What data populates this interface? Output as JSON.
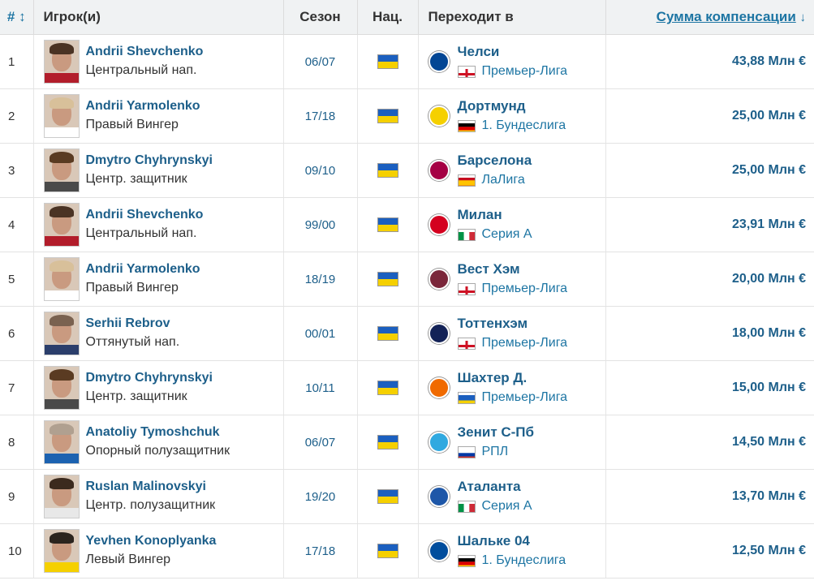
{
  "header": {
    "num": "#",
    "players": "Игрок(и)",
    "season": "Сезон",
    "nat": "Нац.",
    "moves_to": "Переходит в",
    "fee": "Сумма компенсации"
  },
  "rows": [
    {
      "rank": "1",
      "name": "Andrii Shevchenko",
      "position": "Центральный нап.",
      "season": "06/07",
      "club": "Челси",
      "league": "Премьер-Лига",
      "crest_color": "#034694",
      "league_flag": "england",
      "photo": {
        "hair": "#4a3324",
        "shirt": "#b21d2b"
      }
    },
    {
      "rank": "2",
      "name": "Andrii Yarmolenko",
      "position": "Правый Вингер",
      "season": "17/18",
      "club": "Дортмунд",
      "league": "1. Бундеслига",
      "crest_color": "#f5d000",
      "league_flag": "germany",
      "photo": {
        "hair": "#d8c09a",
        "shirt": "#ffffff"
      }
    },
    {
      "rank": "3",
      "name": "Dmytro Chyhrynskyi",
      "position": "Центр. защитник",
      "season": "09/10",
      "club": "Барселона",
      "league": "ЛаЛига",
      "crest_color": "#a50044",
      "league_flag": "spain",
      "photo": {
        "hair": "#5a3b22",
        "shirt": "#4a4a4a"
      }
    },
    {
      "rank": "4",
      "name": "Andrii Shevchenko",
      "position": "Центральный нап.",
      "season": "99/00",
      "club": "Милан",
      "league": "Серия А",
      "crest_color": "#d4001f",
      "league_flag": "italy",
      "photo": {
        "hair": "#4a3324",
        "shirt": "#b21d2b"
      }
    },
    {
      "rank": "5",
      "name": "Andrii Yarmolenko",
      "position": "Правый Вингер",
      "season": "18/19",
      "club": "Вест Хэм",
      "league": "Премьер-Лига",
      "crest_color": "#7a263a",
      "league_flag": "england",
      "photo": {
        "hair": "#d8c09a",
        "shirt": "#ffffff"
      }
    },
    {
      "rank": "6",
      "name": "Serhii Rebrov",
      "position": "Оттянутый нап.",
      "season": "00/01",
      "club": "Тоттенхэм",
      "league": "Премьер-Лига",
      "crest_color": "#132257",
      "league_flag": "england",
      "photo": {
        "hair": "#7a6250",
        "shirt": "#2b3e6b"
      }
    },
    {
      "rank": "7",
      "name": "Dmytro Chyhrynskyi",
      "position": "Центр. защитник",
      "season": "10/11",
      "club": "Шахтер Д.",
      "league": "Премьер-Лига",
      "crest_color": "#f06a00",
      "league_flag": "ukraine",
      "photo": {
        "hair": "#5a3b22",
        "shirt": "#4a4a4a"
      }
    },
    {
      "rank": "8",
      "name": "Anatoliy Tymoshchuk",
      "position": "Опорный полузащитник",
      "season": "06/07",
      "club": "Зенит С-Пб",
      "league": "РПЛ",
      "crest_color": "#30a9e0",
      "league_flag": "russia",
      "photo": {
        "hair": "#b0a090",
        "shirt": "#1c62b0"
      }
    },
    {
      "rank": "9",
      "name": "Ruslan Malinovskyi",
      "position": "Центр. полузащитник",
      "season": "19/20",
      "club": "Аталанта",
      "league": "Серия А",
      "crest_color": "#1e57a8",
      "league_flag": "italy",
      "photo": {
        "hair": "#3b2a1e",
        "shirt": "#e8e8e8"
      }
    },
    {
      "rank": "10",
      "name": "Yevhen Konoplyanka",
      "position": "Левый Вингер",
      "season": "17/18",
      "club": "Шальке 04",
      "league": "1. Бундеслига",
      "crest_color": "#004d9d",
      "league_flag": "germany",
      "photo": {
        "hair": "#2b241e",
        "shirt": "#f5d000"
      }
    }
  ],
  "fees": [
    "43,88 Млн €",
    "25,00 Млн €",
    "25,00 Млн €",
    "23,91 Млн €",
    "20,00 Млн €",
    "18,00 Млн €",
    "15,00 Млн €",
    "14,50 Млн €",
    "13,70 Млн €",
    "12,50 Млн €"
  ],
  "colors": {
    "link": "#1d5f8a",
    "header_bg": "#f0f2f3",
    "ukraine_blue": "#1b5fbf",
    "ukraine_yellow": "#f5d000"
  }
}
